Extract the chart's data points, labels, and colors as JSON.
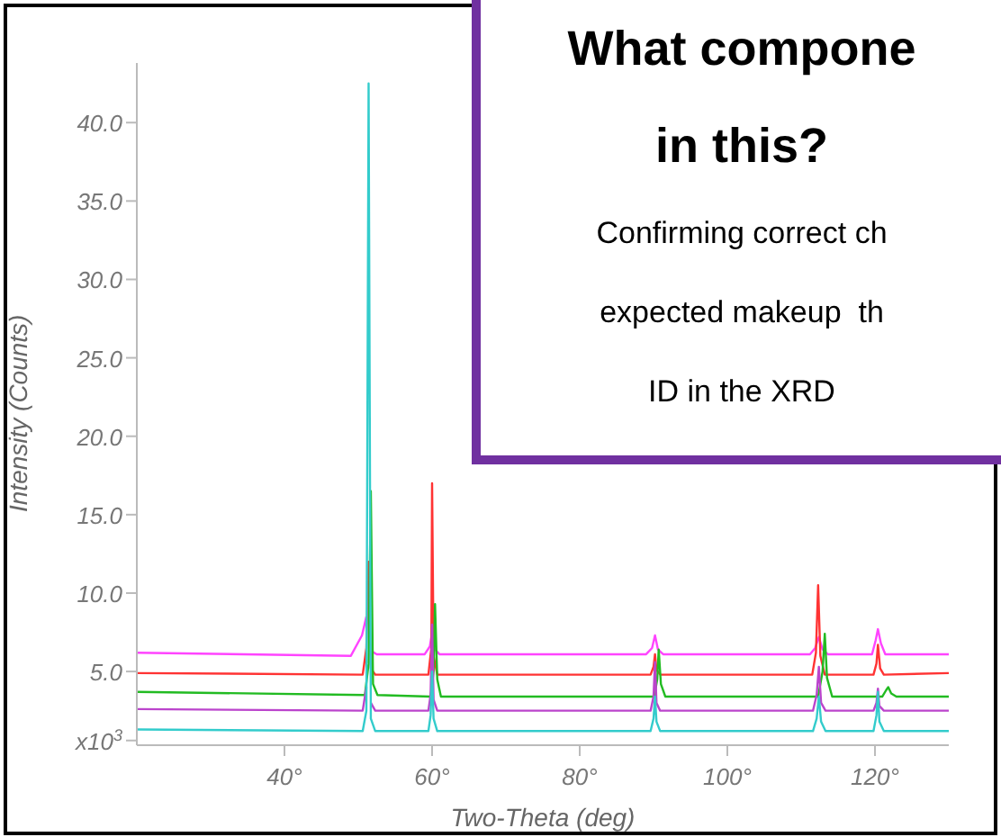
{
  "chart_data": {
    "type": "line",
    "xlabel": "Two-Theta (deg)",
    "ylabel": "Intensity (Counts)",
    "annotations": [
      "What compone",
      "in this?",
      "Confirming correct ch",
      "expected makeup  th",
      "ID in the XRD"
    ],
    "xlim": [
      20,
      130
    ],
    "xticks": [
      {
        "value": 40,
        "label": "40°"
      },
      {
        "value": 60,
        "label": "60°"
      },
      {
        "value": 80,
        "label": "80°"
      },
      {
        "value": 100,
        "label": "100°"
      },
      {
        "value": 120,
        "label": "120°"
      }
    ],
    "ylim": [
      0.3,
      43.8
    ],
    "yticks": [
      {
        "value": 0.6,
        "label": "x10$^{3}$"
      },
      {
        "value": 5,
        "label": "5.0"
      },
      {
        "value": 10,
        "label": "10.0"
      },
      {
        "value": 15,
        "label": "15.0"
      },
      {
        "value": 20,
        "label": "20.0"
      },
      {
        "value": 25,
        "label": "25.0"
      },
      {
        "value": 30,
        "label": "30.0"
      },
      {
        "value": 35,
        "label": "35.0"
      },
      {
        "value": 40,
        "label": "40.0"
      }
    ],
    "grid": false,
    "legend": false,
    "marker": "none",
    "series": [
      {
        "color": "#ff44ff",
        "x": [
          20,
          49,
          50.5,
          51.1,
          51.4,
          51.8,
          52.5,
          59,
          59.7,
          60.0,
          60.4,
          61,
          89,
          89.8,
          90.2,
          90.6,
          91.3,
          111.2,
          111.9,
          112.4,
          112.9,
          113.6,
          119.6,
          120.1,
          120.4,
          120.8,
          121.4,
          130
        ],
        "values": [
          6.2,
          6.0,
          7.3,
          8.5,
          null,
          6.3,
          6.1,
          6.1,
          6.6,
          7.5,
          6.4,
          6.1,
          6.1,
          6.5,
          7.3,
          6.4,
          6.1,
          6.1,
          6.5,
          7.2,
          6.4,
          6.1,
          6.1,
          7.0,
          7.7,
          6.8,
          6.1,
          6.1
        ]
      },
      {
        "color": "#ff3333",
        "x": [
          20,
          50.6,
          51.1,
          51.4,
          51.7,
          52.3,
          59.5,
          59.9,
          60.0,
          60.2,
          60.7,
          89.6,
          90.0,
          90.2,
          90.4,
          90.9,
          111.5,
          112.0,
          112.3,
          112.6,
          113.2,
          119.8,
          120.2,
          120.4,
          120.7,
          121.2,
          130
        ],
        "values": [
          4.9,
          4.8,
          6.5,
          12,
          5.2,
          4.8,
          4.8,
          6.5,
          17,
          6.0,
          4.8,
          4.8,
          5.3,
          6.1,
          5.1,
          4.8,
          4.8,
          6.2,
          10.5,
          6.0,
          4.8,
          4.8,
          5.5,
          6.7,
          5.2,
          4.8,
          4.9
        ]
      },
      {
        "color": "#22bb22",
        "x": [
          20,
          50.9,
          51.4,
          51.7,
          52.0,
          52.6,
          59.8,
          60.2,
          60.4,
          60.7,
          61.2,
          90.1,
          90.5,
          90.7,
          91.0,
          91.6,
          112.3,
          112.9,
          113.2,
          113.5,
          114.2,
          121.0,
          121.5,
          121.8,
          122.2,
          122.9,
          130
        ],
        "values": [
          3.7,
          3.5,
          5.5,
          16.5,
          4.2,
          3.5,
          3.4,
          5.0,
          9.3,
          4.5,
          3.4,
          3.4,
          4.5,
          6.4,
          4.2,
          3.4,
          3.4,
          5.0,
          7.4,
          4.6,
          3.4,
          3.4,
          3.8,
          4.0,
          3.6,
          3.4,
          3.4
        ]
      },
      {
        "color": "#bb44cc",
        "x": [
          20,
          50.6,
          51.1,
          51.4,
          51.7,
          52.3,
          59.5,
          59.8,
          60.0,
          60.2,
          60.7,
          89.6,
          90.0,
          90.2,
          90.4,
          90.9,
          111.6,
          112.1,
          112.4,
          112.7,
          113.3,
          119.8,
          120.2,
          120.4,
          120.6,
          121.2,
          130
        ],
        "values": [
          2.6,
          2.5,
          4.0,
          null,
          3.0,
          2.5,
          2.5,
          3.5,
          8.0,
          3.2,
          2.5,
          2.5,
          3.4,
          5.6,
          3.0,
          2.5,
          2.5,
          3.5,
          5.3,
          3.0,
          2.5,
          2.5,
          3.0,
          3.9,
          2.8,
          2.5,
          2.5
        ]
      },
      {
        "color": "#33cccc",
        "x": [
          20,
          50.6,
          51.1,
          51.4,
          51.7,
          52.3,
          59.5,
          59.8,
          60.0,
          60.2,
          60.7,
          89.6,
          90.0,
          90.2,
          90.4,
          90.9,
          111.6,
          112.1,
          112.4,
          112.7,
          113.3,
          119.8,
          120.2,
          120.4,
          120.6,
          121.2,
          130
        ],
        "values": [
          1.3,
          1.2,
          2.5,
          42.5,
          2.0,
          1.2,
          1.2,
          2.2,
          5.0,
          2.0,
          1.2,
          1.2,
          2.0,
          3.4,
          1.8,
          1.2,
          1.2,
          2.0,
          3.4,
          1.8,
          1.2,
          1.2,
          2.2,
          3.7,
          1.8,
          1.2,
          1.2
        ]
      }
    ]
  }
}
